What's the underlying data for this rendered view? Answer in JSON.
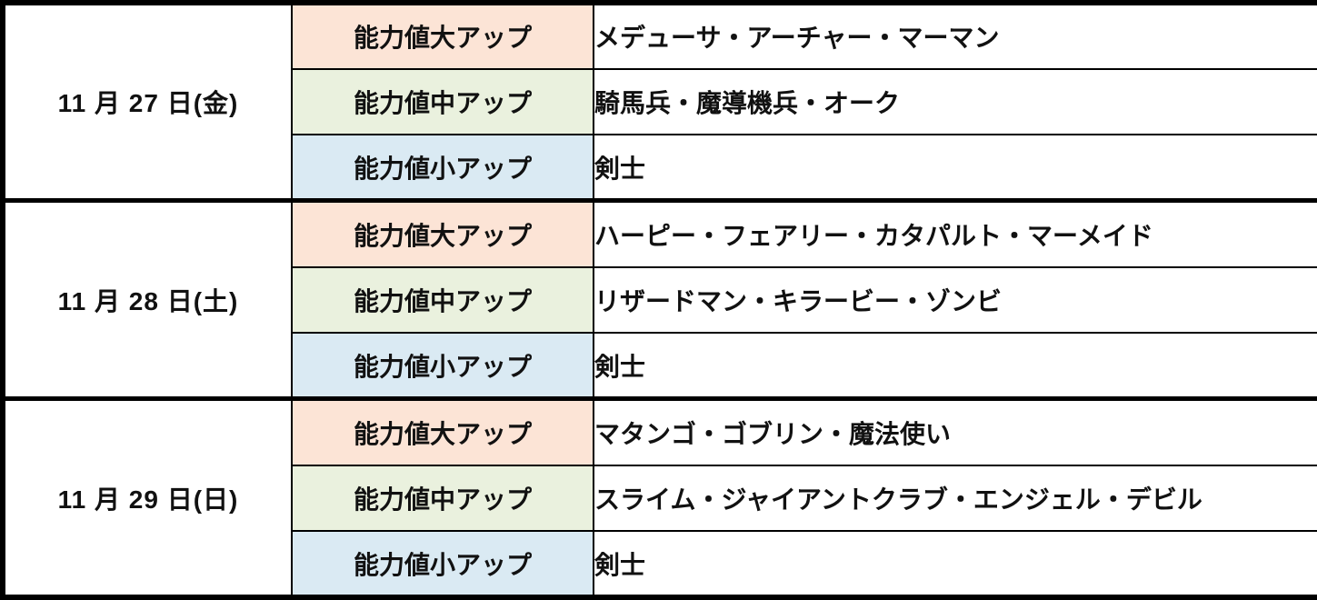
{
  "table": {
    "description": "unit-ability-up-schedule",
    "tier_colors": {
      "large": "#FCE4D6",
      "medium": "#EAF1DE",
      "small": "#DAEAF3"
    },
    "groups": [
      {
        "date": "11 月 27 日(金)",
        "rows": [
          {
            "tier": "large",
            "label": "能力値大アップ",
            "units": "メデューサ・アーチャー・マーマン"
          },
          {
            "tier": "medium",
            "label": "能力値中アップ",
            "units": "騎馬兵・魔導機兵・オーク"
          },
          {
            "tier": "small",
            "label": "能力値小アップ",
            "units": "剣士"
          }
        ]
      },
      {
        "date": "11 月 28 日(土)",
        "rows": [
          {
            "tier": "large",
            "label": "能力値大アップ",
            "units": "ハーピー・フェアリー・カタパルト・マーメイド"
          },
          {
            "tier": "medium",
            "label": "能力値中アップ",
            "units": "リザードマン・キラービー・ゾンビ"
          },
          {
            "tier": "small",
            "label": "能力値小アップ",
            "units": "剣士"
          }
        ]
      },
      {
        "date": "11 月 29 日(日)",
        "rows": [
          {
            "tier": "large",
            "label": "能力値大アップ",
            "units": "マタンゴ・ゴブリン・魔法使い"
          },
          {
            "tier": "medium",
            "label": "能力値中アップ",
            "units": "スライム・ジャイアントクラブ・エンジェル・デビル"
          },
          {
            "tier": "small",
            "label": "能力値小アップ",
            "units": "剣士"
          }
        ]
      }
    ]
  }
}
